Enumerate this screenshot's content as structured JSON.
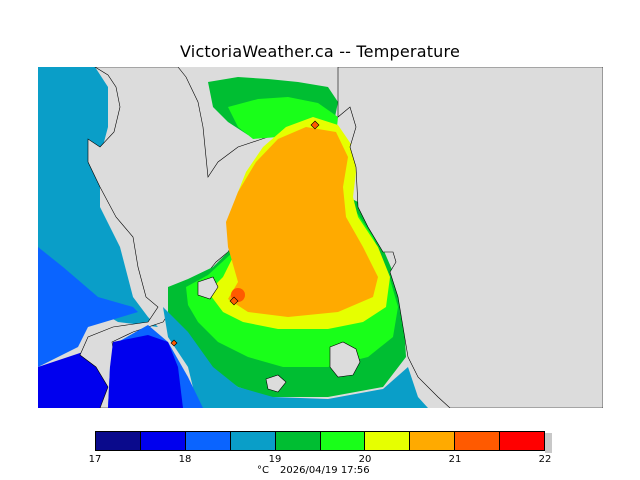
{
  "title": "VictoriaWeather.ca -- Temperature",
  "legend": {
    "min": 17,
    "max": 22,
    "tick_labels": [
      "17",
      "18",
      "19",
      "20",
      "21",
      "22"
    ],
    "bins": [
      {
        "from": 17.0,
        "to": 17.5,
        "color": "#0a0a8c"
      },
      {
        "from": 17.5,
        "to": 18.0,
        "color": "#0000ee"
      },
      {
        "from": 18.0,
        "to": 18.5,
        "color": "#0a64ff"
      },
      {
        "from": 18.5,
        "to": 19.0,
        "color": "#0a9ec8"
      },
      {
        "from": 19.0,
        "to": 19.5,
        "color": "#00be32"
      },
      {
        "from": 19.5,
        "to": 20.0,
        "color": "#19ff19"
      },
      {
        "from": 20.0,
        "to": 20.5,
        "color": "#e6ff00"
      },
      {
        "from": 20.5,
        "to": 21.0,
        "color": "#ffaa00"
      },
      {
        "from": 21.0,
        "to": 21.5,
        "color": "#ff5a00"
      },
      {
        "from": 21.5,
        "to": 22.0,
        "color": "#ff0000"
      }
    ]
  },
  "units": "°C",
  "timestamp": "2026/04/19 17:56",
  "colors": {
    "land_gray": "#dcdcdc",
    "background": "#ffffff",
    "coastline": "#000000"
  }
}
